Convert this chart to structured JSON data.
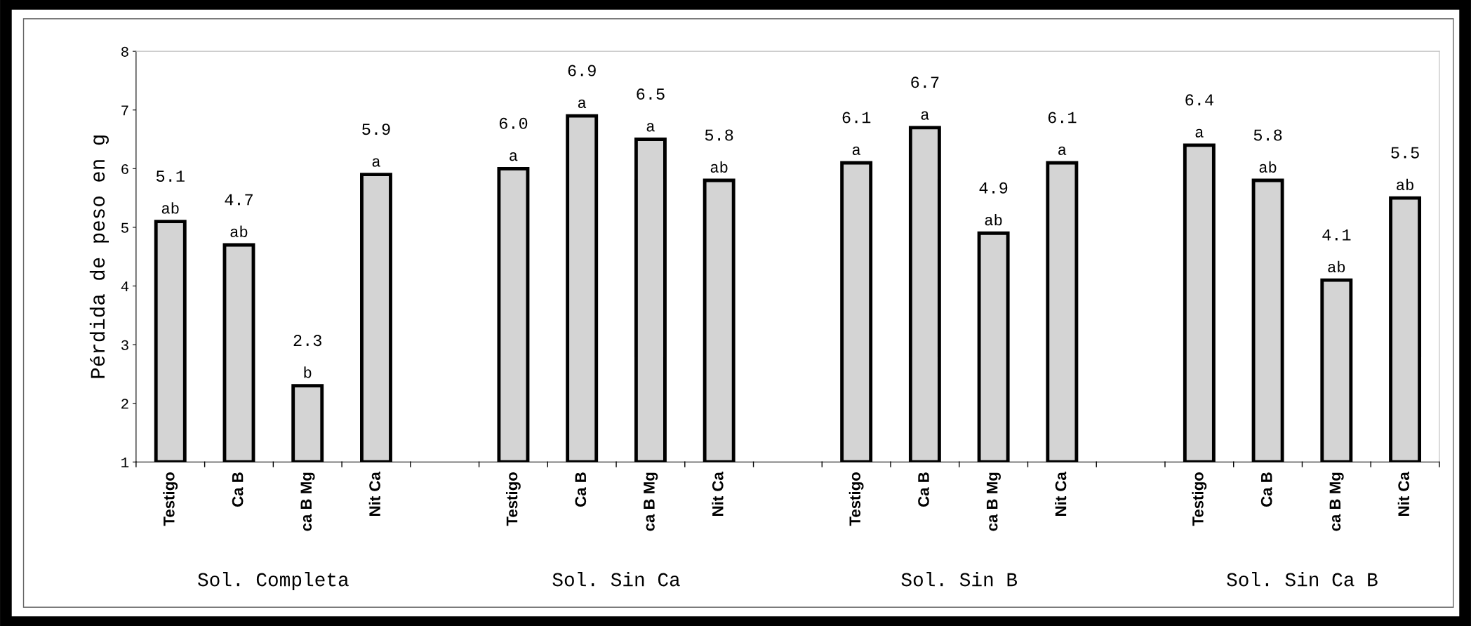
{
  "chart_data": {
    "type": "bar",
    "ylabel": "Pérdida de peso en g",
    "categories": [
      "Testigo",
      "Ca B",
      "ca B Mg",
      "Nit Ca",
      null,
      "Testigo",
      "Ca B",
      "ca B Mg",
      "Nit Ca",
      null,
      "Testigo",
      "Ca B",
      "ca B Mg",
      "Nit Ca",
      null,
      "Testigo",
      "Ca B",
      "ca B Mg",
      "Nit Ca"
    ],
    "values": [
      5.1,
      4.7,
      2.3,
      5.9,
      null,
      6.0,
      6.9,
      6.5,
      5.8,
      null,
      6.1,
      6.7,
      4.9,
      6.1,
      null,
      6.4,
      5.8,
      4.1,
      5.5
    ],
    "value_labels": [
      "5.1",
      "4.7",
      "2.3",
      "5.9",
      null,
      "6.0",
      "6.9",
      "6.5",
      "5.8",
      null,
      "6.1",
      "6.7",
      "4.9",
      "6.1",
      null,
      "6.4",
      "5.8",
      "4.1",
      "5.5"
    ],
    "color": "#d4d4d4",
    "ylim": [
      1,
      8
    ],
    "yticks": [
      1,
      2,
      3,
      4,
      5,
      6,
      7,
      8
    ],
    "grid": false,
    "legend": false,
    "annotations": [
      {
        "text": "ab",
        "y": 5.1
      },
      {
        "text": "ab",
        "y": 4.7
      },
      {
        "text": "b",
        "y": 2.3
      },
      {
        "text": "a",
        "y": 5.9
      },
      {
        "text": "a",
        "y": 6.0
      },
      {
        "text": "a",
        "y": 6.9
      },
      {
        "text": "a",
        "y": 6.5
      },
      {
        "text": "ab",
        "y": 5.8
      },
      {
        "text": "a",
        "y": 6.1
      },
      {
        "text": "a",
        "y": 6.7
      },
      {
        "text": "ab",
        "y": 4.9
      },
      {
        "text": "a",
        "y": 6.1
      },
      {
        "text": "a",
        "y": 6.4
      },
      {
        "text": "ab",
        "y": 5.8
      },
      {
        "text": "ab",
        "y": 4.1
      },
      {
        "text": "ab",
        "y": 5.5
      },
      "Sol. Completa",
      "Sol. Sin Ca",
      "Sol. Sin B",
      "Sol. Sin Ca B"
    ]
  }
}
